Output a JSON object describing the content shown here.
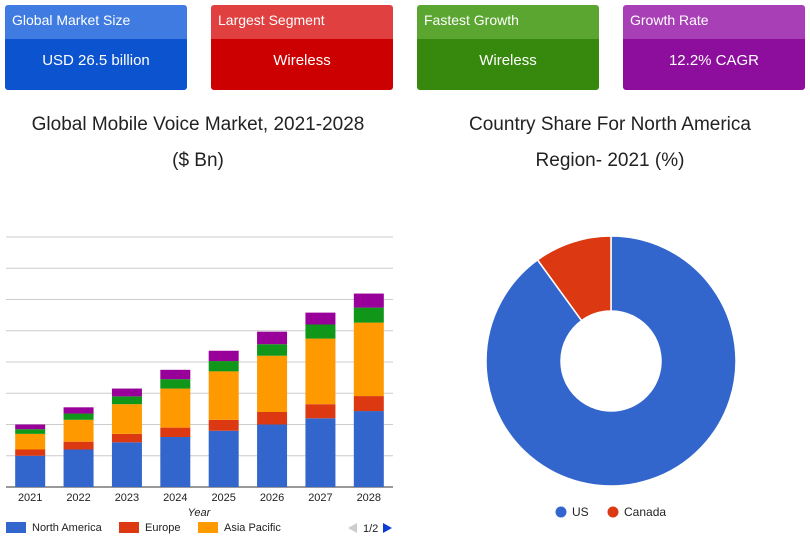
{
  "kpis": [
    {
      "title": "Global Market Size",
      "value": "USD 26.5 billion"
    },
    {
      "title": "Largest Segment",
      "value": "Wireless"
    },
    {
      "title": "Fastest Growth",
      "value": "Wireless"
    },
    {
      "title": "Growth Rate",
      "value": "12.2% CAGR"
    }
  ],
  "colors": {
    "north_america": "#3366cc",
    "europe": "#dc3912",
    "asia_pacific": "#ff9900",
    "green_series": "#109618",
    "purple_series": "#990099"
  },
  "legend_page": "1/2",
  "chart_data": [
    {
      "type": "bar",
      "stacked": true,
      "title_line1": "Global Mobile Voice Market, 2021-2028",
      "title_line2": "($ Bn)",
      "xlabel": "Year",
      "ylabel": "",
      "categories": [
        "2021",
        "2022",
        "2023",
        "2024",
        "2025",
        "2026",
        "2027",
        "2028"
      ],
      "ylim": [
        0,
        8
      ],
      "grid": true,
      "legend_position": "bottom",
      "series": [
        {
          "name": "North America",
          "color": "#3366cc",
          "values": [
            1.0,
            1.2,
            1.43,
            1.6,
            1.8,
            2.0,
            2.2,
            2.43
          ]
        },
        {
          "name": "Europe",
          "color": "#dc3912",
          "values": [
            0.2,
            0.25,
            0.27,
            0.3,
            0.35,
            0.4,
            0.45,
            0.48
          ]
        },
        {
          "name": "Asia Pacific",
          "color": "#ff9900",
          "values": [
            0.5,
            0.7,
            0.95,
            1.25,
            1.55,
            1.8,
            2.1,
            2.35
          ]
        },
        {
          "color": "#109618",
          "values": [
            0.15,
            0.2,
            0.25,
            0.3,
            0.33,
            0.37,
            0.45,
            0.48
          ]
        },
        {
          "color": "#990099",
          "values": [
            0.15,
            0.2,
            0.25,
            0.3,
            0.33,
            0.4,
            0.38,
            0.45
          ]
        }
      ]
    },
    {
      "type": "pie",
      "donut": true,
      "title_line1": "Country Share For North America",
      "title_line2": "Region- 2021 (%)",
      "legend_position": "bottom",
      "slices": [
        {
          "name": "US",
          "value": 90,
          "color": "#3366cc"
        },
        {
          "name": "Canada",
          "value": 10,
          "color": "#dc3912"
        }
      ]
    }
  ]
}
